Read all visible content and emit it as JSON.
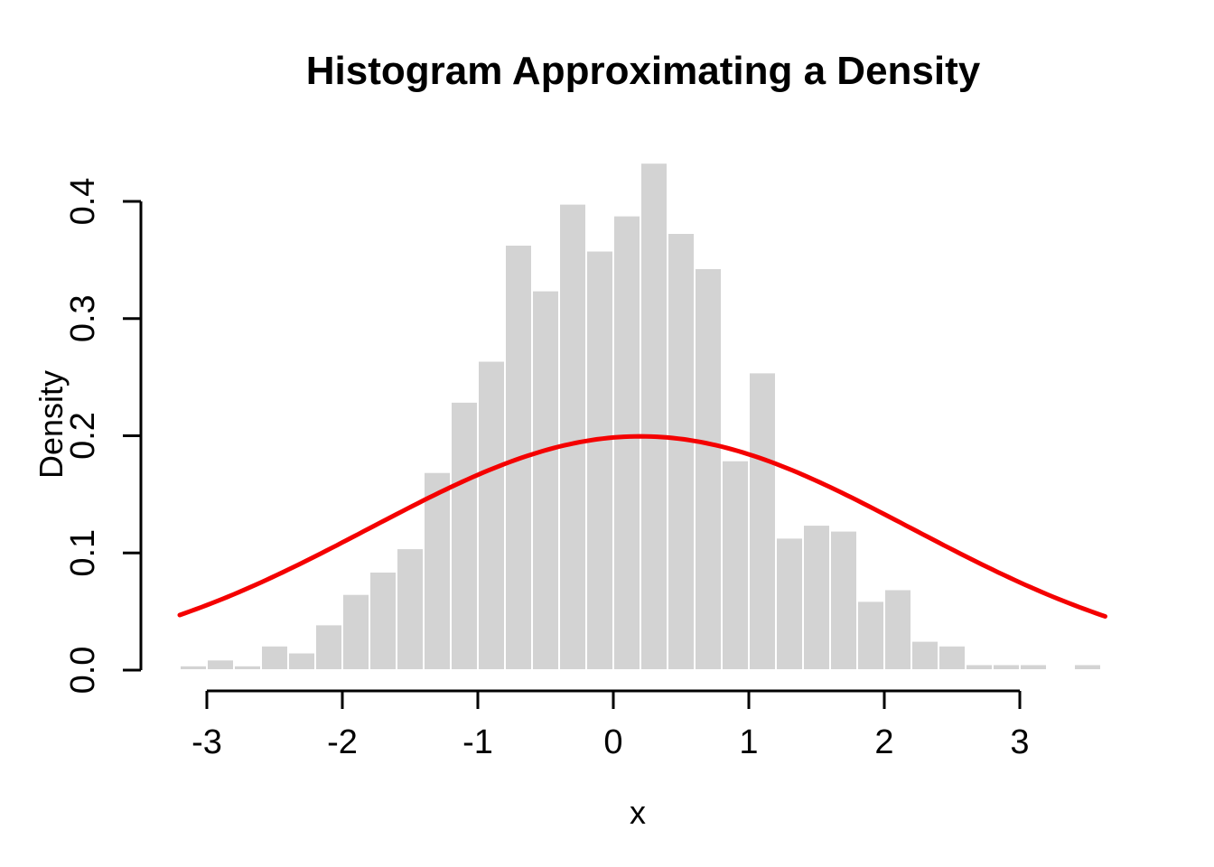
{
  "chart_data": {
    "type": "bar",
    "subtype": "histogram-with-density-curve",
    "title": "Histogram Approximating a Density",
    "xlabel": "x",
    "ylabel": "Density",
    "bin_start": -3.2,
    "bin_width": 0.2,
    "densities": [
      0.004,
      0.009,
      0.004,
      0.021,
      0.015,
      0.039,
      0.065,
      0.084,
      0.104,
      0.169,
      0.229,
      0.264,
      0.363,
      0.324,
      0.398,
      0.358,
      0.388,
      0.433,
      0.373,
      0.343,
      0.179,
      0.254,
      0.113,
      0.124,
      0.119,
      0.059,
      0.069,
      0.025,
      0.021,
      0.005,
      0.005,
      0.005,
      0.0,
      0.005
    ],
    "x_ticks": [
      -3,
      -2,
      -1,
      0,
      1,
      2,
      3
    ],
    "x_tick_labels": [
      "-3",
      "-2",
      "-1",
      "0",
      "1",
      "2",
      "3"
    ],
    "y_ticks": [
      0.0,
      0.1,
      0.2,
      0.3,
      0.4
    ],
    "y_tick_labels": [
      "0.0",
      "0.1",
      "0.2",
      "0.3",
      "0.4"
    ],
    "xlim": [
      -3.2,
      3.63
    ],
    "ylim": [
      0.0,
      0.4
    ],
    "grid": "off",
    "legend": "none",
    "curve": {
      "shape": "normal_density",
      "mean": 0.2,
      "sd": 2,
      "peak_density": 0.1995,
      "x_start": -3.2,
      "x_end": 3.63
    },
    "colors": {
      "bar_fill": "#d3d3d3",
      "bar_border": "#ffffff",
      "curve": "#f40000",
      "axis": "#000000",
      "background": "#ffffff",
      "text": "#000000"
    }
  }
}
